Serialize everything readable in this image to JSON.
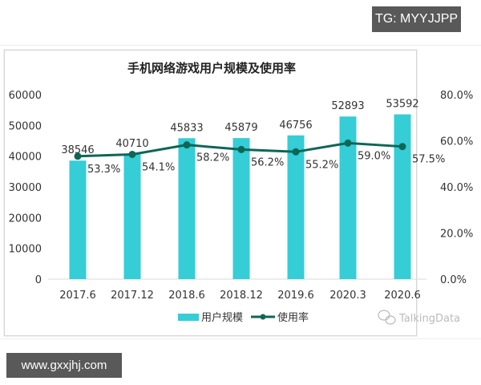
{
  "badges": {
    "tg": "TG: MYYJJPP",
    "site": "www.gxxjhj.com"
  },
  "chart_data": {
    "type": "bar+line",
    "title": "手机网络游戏用户规模及使用率",
    "categories": [
      "2017.6",
      "2017.12",
      "2018.6",
      "2018.12",
      "2019.6",
      "2020.3",
      "2020.6"
    ],
    "series": [
      {
        "name": "用户规模",
        "type": "bar",
        "axis": "left",
        "color": "#35CDD6",
        "values": [
          38546,
          40710,
          45833,
          45879,
          46756,
          52893,
          53592
        ],
        "labels": [
          "38546",
          "40710",
          "45833",
          "45879",
          "46756",
          "52893",
          "53592"
        ]
      },
      {
        "name": "使用率",
        "type": "line",
        "axis": "right",
        "color": "#0E6657",
        "values": [
          53.3,
          54.1,
          58.2,
          56.2,
          55.2,
          59.0,
          57.5
        ],
        "labels": [
          "53.3%",
          "54.1%",
          "58.2%",
          "56.2%",
          "55.2%",
          "59.0%",
          "57.5%"
        ]
      }
    ],
    "left_axis": {
      "min": 0,
      "max": 60000,
      "ticks": [
        "0",
        "10000",
        "20000",
        "30000",
        "40000",
        "50000",
        "60000"
      ]
    },
    "right_axis": {
      "min": 0,
      "max": 80,
      "ticks": [
        "0.0%",
        "20.0%",
        "40.0%",
        "60.0%",
        "80.0%"
      ]
    },
    "grid": false,
    "legend": {
      "position": "bottom",
      "entries": [
        "用户规模",
        "使用率"
      ]
    },
    "watermark": "TalkingData"
  }
}
